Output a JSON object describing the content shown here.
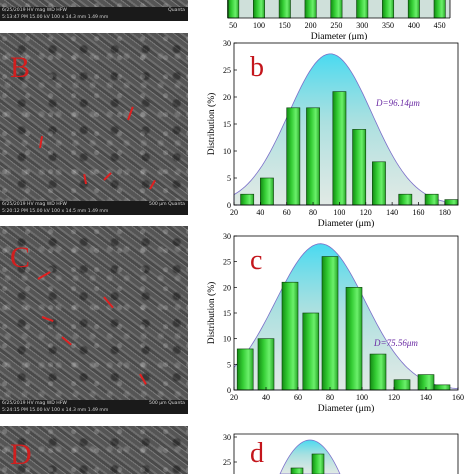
{
  "panels": {
    "A": {
      "bar_left": [
        "6/25/2019  HV  mag  WD  HFW",
        "5:13:47 PM  15.00 kV  100 x  14.3 mm  1.49 mm"
      ],
      "bar_right": "Quanta"
    },
    "B": {
      "letter": "B",
      "bar_left": [
        "6/25/2019  HV  mag  WD  HFW",
        "5:20:12 PM  15.00 kV  100 x  14.5 mm  1.49 mm"
      ],
      "bar_right": "500 μm  Quanta"
    },
    "C": {
      "letter": "C",
      "bar_left": [
        "6/25/2019  HV  mag  WD  HFW",
        "5:24:15 PM  15.00 kV  100 x  14.3 mm  1.49 mm"
      ],
      "bar_right": "500 μm  Quanta"
    },
    "D": {
      "letter": "D"
    }
  },
  "chart_data": [
    {
      "panel": "a",
      "type": "bar",
      "x": [
        50,
        100,
        150,
        200,
        250,
        300,
        350,
        400,
        450
      ],
      "xlim": [
        40,
        470
      ],
      "xticks": [
        50,
        100,
        150,
        200,
        250,
        300,
        350,
        400,
        450
      ],
      "xlabel": "Diameter (μm)",
      "bar_color": "#33cc33"
    },
    {
      "panel": "b",
      "type": "bar",
      "letter": "b",
      "x": [
        30,
        45,
        65,
        80,
        100,
        115,
        130,
        150,
        170,
        185
      ],
      "values": [
        2,
        5,
        18,
        18,
        21,
        14,
        8,
        2,
        2,
        1
      ],
      "xlim": [
        20,
        190
      ],
      "ylim": [
        0,
        30
      ],
      "xticks": [
        20,
        40,
        60,
        80,
        100,
        120,
        140,
        160,
        180
      ],
      "yticks": [
        0,
        5,
        10,
        15,
        20,
        25,
        30
      ],
      "xlabel": "Diameter (μm)",
      "ylabel": "Distribution (%)",
      "annotation": "D=96.14μm",
      "fit_peak": 28
    },
    {
      "panel": "c",
      "type": "bar",
      "letter": "c",
      "x": [
        27,
        40,
        55,
        68,
        80,
        95,
        110,
        125,
        140,
        150
      ],
      "values": [
        8,
        10,
        21,
        15,
        26,
        20,
        7,
        2,
        3,
        1
      ],
      "xlim": [
        20,
        160
      ],
      "ylim": [
        0,
        30
      ],
      "xticks": [
        20,
        40,
        60,
        80,
        100,
        120,
        140,
        160
      ],
      "yticks": [
        0,
        5,
        10,
        15,
        20,
        25,
        30
      ],
      "xlabel": "Diameter (μm)",
      "ylabel": "Distribution (%)",
      "annotation": "D=75.56μm",
      "fit_peak": 28.5
    },
    {
      "panel": "d",
      "type": "bar",
      "letter": "d",
      "ylim": [
        0,
        30
      ],
      "yticks": [
        25,
        30
      ],
      "ylabel": ""
    }
  ]
}
